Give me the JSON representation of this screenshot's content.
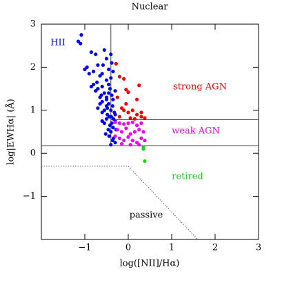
{
  "chart_data": {
    "type": "scatter",
    "title": "Nuclear",
    "x_label": "log([NII]/Hα)",
    "y_label": "log|EWHα| (Å)",
    "xlim": [
      -2,
      3
    ],
    "ylim": [
      -2,
      3
    ],
    "xticks": [
      {
        "value": -1,
        "label": "−1"
      },
      0,
      1,
      2,
      3
    ],
    "yticks": [
      {
        "value": -1,
        "label": "−1"
      },
      0,
      1,
      2,
      3
    ],
    "series": [
      {
        "name": "HII",
        "color": "#0000ee",
        "x": [
          -1.08,
          -1.15,
          -1.1,
          -0.85,
          -0.95,
          -1.0,
          -0.9,
          -0.8,
          -0.75,
          -0.7,
          -0.65,
          -0.6,
          -0.55,
          -0.5,
          -0.45,
          -0.4,
          -0.38,
          -0.35,
          -0.8,
          -0.7,
          -0.6,
          -0.5,
          -0.45,
          -0.4,
          -0.55,
          -0.65,
          -0.75,
          -0.85,
          -0.6,
          -0.5,
          -0.45,
          -0.42,
          -0.38,
          -0.35,
          -0.3,
          -0.5,
          -0.55,
          -0.6,
          -0.65,
          -0.7,
          -0.48,
          -0.44,
          -0.4,
          -0.36,
          -0.32,
          -0.5,
          -0.55,
          -0.6,
          -0.42,
          -0.38,
          -0.34,
          -0.3,
          -0.46,
          -0.4,
          -0.35,
          -0.3,
          -0.52,
          -0.44,
          -0.36,
          -0.28,
          -0.4,
          -0.34,
          -0.3,
          -0.5,
          -0.45,
          -0.62,
          -0.72,
          -0.58,
          -0.48,
          -0.39
        ],
        "values": [
          2.75,
          2.6,
          2.55,
          2.35,
          2.0,
          1.95,
          1.85,
          1.9,
          2.3,
          2.05,
          1.8,
          1.85,
          2.4,
          2.2,
          1.95,
          2.3,
          2.1,
          1.9,
          1.6,
          1.5,
          1.55,
          1.7,
          1.6,
          1.75,
          1.4,
          1.3,
          1.45,
          1.55,
          1.2,
          1.3,
          1.4,
          1.5,
          1.35,
          1.25,
          1.45,
          1.1,
          1.0,
          0.95,
          1.15,
          1.05,
          0.9,
          0.85,
          1.0,
          1.1,
          0.95,
          0.8,
          0.7,
          0.75,
          0.65,
          0.7,
          0.8,
          0.9,
          0.55,
          0.5,
          0.6,
          0.75,
          0.45,
          0.4,
          0.3,
          0.55,
          0.2,
          0.35,
          0.25,
          1.25,
          1.15,
          1.35,
          1.65,
          2.05,
          1.05,
          0.85
        ]
      },
      {
        "name": "strong AGN",
        "color": "#ee0000",
        "x": [
          -0.28,
          -0.2,
          -0.1,
          0.25,
          -0.05,
          0.0,
          0.2,
          -0.25,
          -0.15,
          -0.1,
          0.0,
          0.1,
          0.2,
          0.3,
          0.3,
          -0.2,
          0.05,
          0.38,
          0.15,
          -0.05
        ],
        "values": [
          2.08,
          1.78,
          1.73,
          1.58,
          1.48,
          1.42,
          1.25,
          1.3,
          1.05,
          1.0,
          0.95,
          1.0,
          0.9,
          0.95,
          0.85,
          0.85,
          0.82,
          0.82,
          0.8,
          1.15
        ]
      },
      {
        "name": "weak AGN",
        "color": "#ee00ee",
        "x": [
          -0.3,
          -0.2,
          -0.1,
          0.0,
          0.1,
          0.2,
          0.3,
          -0.25,
          -0.15,
          -0.05,
          0.05,
          0.15,
          0.25,
          0.35,
          -0.3,
          -0.2,
          -0.1,
          0.0,
          0.1,
          0.2,
          0.3,
          -0.15,
          0.05,
          0.25,
          0.38
        ],
        "values": [
          0.72,
          0.7,
          0.68,
          0.7,
          0.72,
          0.65,
          0.7,
          0.55,
          0.5,
          0.58,
          0.45,
          0.5,
          0.55,
          0.5,
          0.4,
          0.35,
          0.3,
          0.38,
          0.3,
          0.25,
          0.35,
          0.22,
          0.2,
          0.2,
          0.3
        ]
      },
      {
        "name": "retired",
        "color": "#22cc22",
        "x": [
          0.35,
          0.35,
          0.38
        ],
        "values": [
          0.15,
          0.1,
          -0.18
        ]
      }
    ],
    "annotations": [
      "passive"
    ],
    "lines": [
      {
        "style": "solid",
        "x": [
          -0.4,
          -0.4
        ],
        "y": [
          0.18,
          3
        ]
      },
      {
        "style": "solid",
        "x": [
          -0.4,
          3
        ],
        "y": [
          0.78,
          0.78
        ]
      },
      {
        "style": "solid",
        "x": [
          -2,
          3
        ],
        "y": [
          0.18,
          0.18
        ]
      },
      {
        "style": "dotted",
        "x": [
          -2,
          0,
          1.6
        ],
        "y": [
          -0.3,
          -0.3,
          -2
        ]
      }
    ]
  }
}
